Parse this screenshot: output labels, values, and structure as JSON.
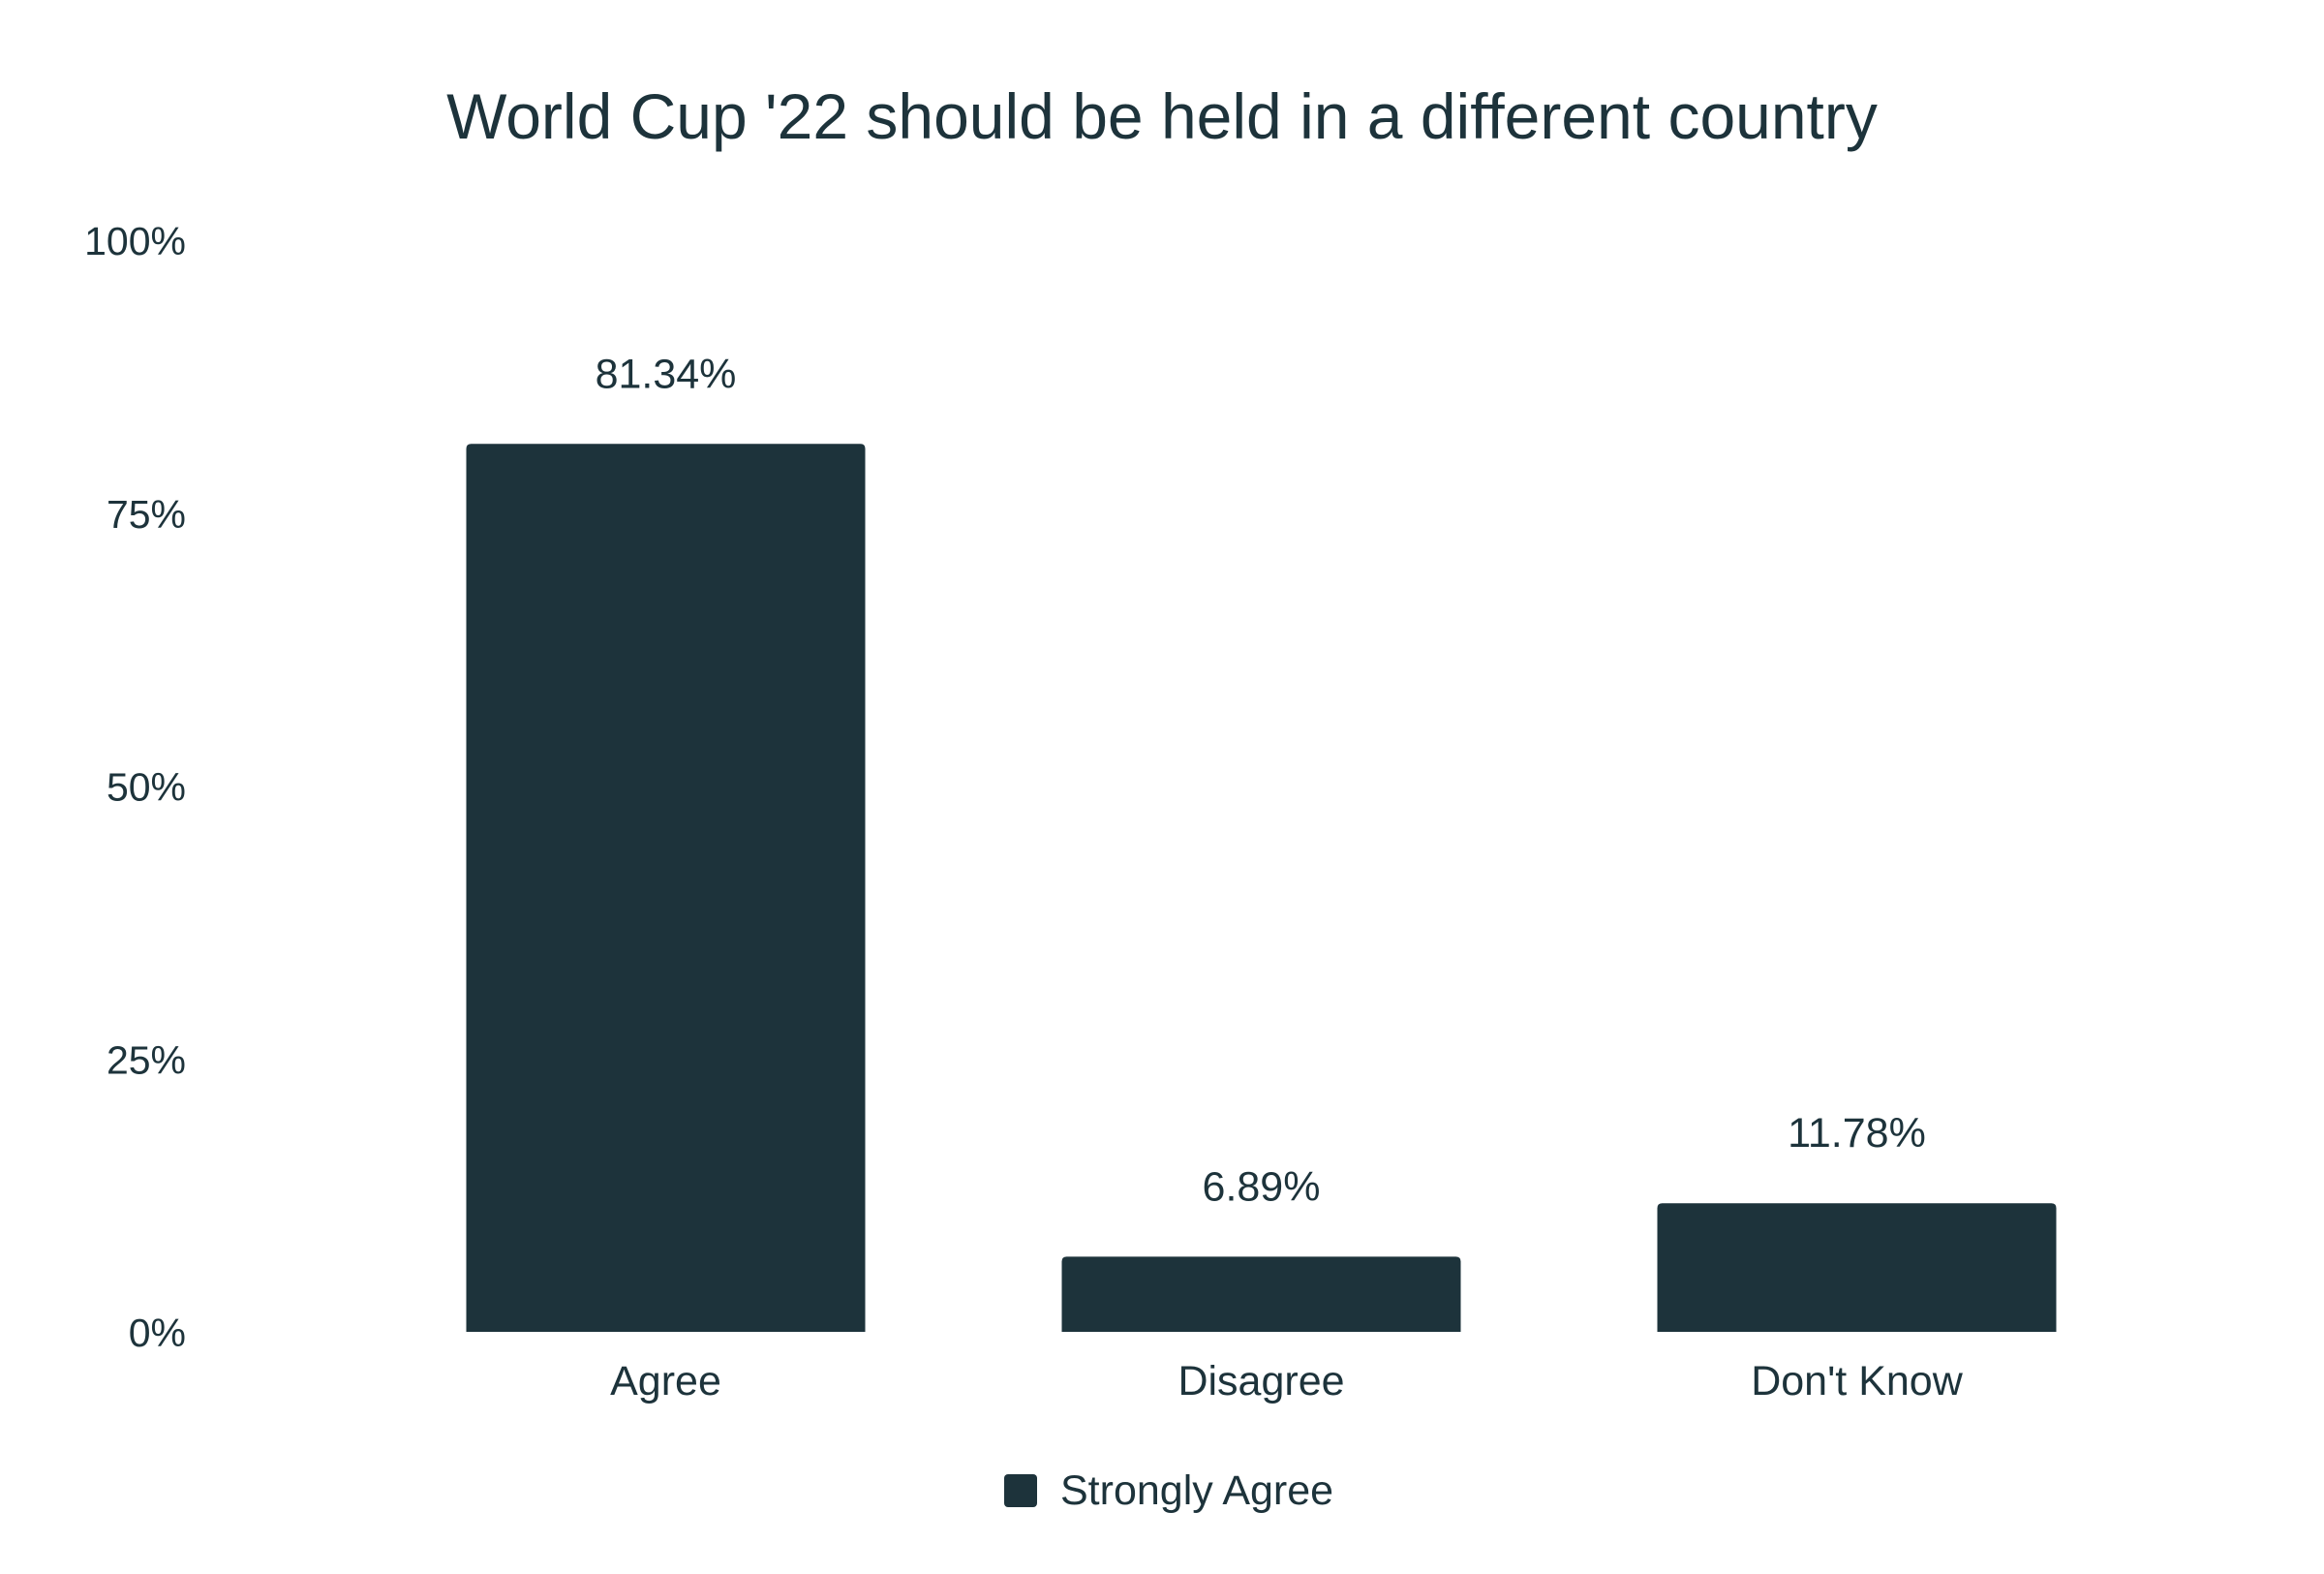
{
  "chart_data": {
    "type": "bar",
    "title": "World Cup '22 should be held in a different country",
    "categories": [
      "Agree",
      "Disagree",
      "Don't Know"
    ],
    "series": [
      {
        "name": "Strongly Agree",
        "values": [
          81.34,
          6.89,
          11.78
        ],
        "value_labels": [
          "81.34%",
          "6.89%",
          "11.78%"
        ]
      }
    ],
    "ylim": [
      0,
      100
    ],
    "yticks": [
      0,
      25,
      50,
      75,
      100
    ],
    "ytick_labels": [
      "0%",
      "25%",
      "50%",
      "75%",
      "100%"
    ],
    "xlabel": "",
    "ylabel": "",
    "grid": false,
    "legend_position": "bottom-center",
    "colors": {
      "bar": "#1d333b",
      "text": "#1d333b",
      "background": "#ffffff"
    }
  }
}
